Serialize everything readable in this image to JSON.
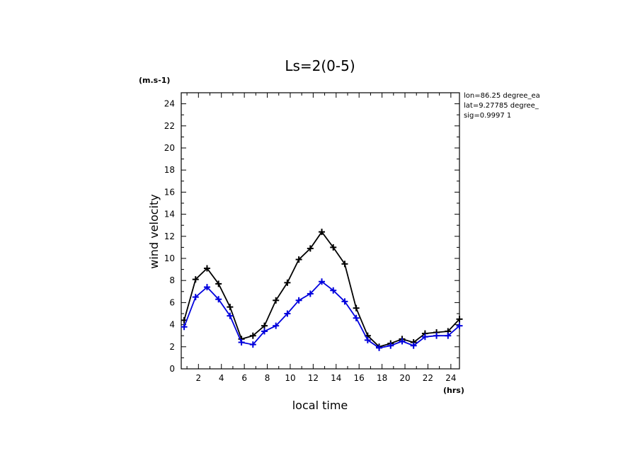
{
  "chart_data": {
    "type": "line",
    "title": "Ls=2(0-5)",
    "xlabel": "local time",
    "ylabel": "wind velocity",
    "yunit": "(m.s-1)",
    "xunit": "(hrs)",
    "xlim": [
      0.5,
      24.75
    ],
    "ylim": [
      0,
      25
    ],
    "xticks": [
      2,
      4,
      6,
      8,
      10,
      12,
      14,
      16,
      18,
      20,
      22,
      24
    ],
    "yticks": [
      0,
      2,
      4,
      6,
      8,
      10,
      12,
      14,
      16,
      18,
      20,
      22,
      24
    ],
    "grid": false,
    "annotations": [
      "lon=86.25 degree_ea",
      "lat=9.27785 degree_",
      "sig=0.9997 1"
    ],
    "series": [
      {
        "color": "#000000",
        "marker": "plus",
        "x": [
          0.75,
          1.75,
          2.75,
          3.75,
          4.75,
          5.75,
          6.75,
          7.75,
          8.75,
          9.75,
          10.75,
          11.75,
          12.75,
          13.75,
          14.75,
          15.75,
          16.75,
          17.75,
          18.75,
          19.75,
          20.75,
          21.75,
          22.75,
          23.75,
          24.75
        ],
        "values": [
          4.4,
          8.1,
          9.1,
          7.7,
          5.6,
          2.7,
          3.0,
          3.9,
          6.2,
          7.8,
          9.9,
          10.9,
          12.4,
          11.0,
          9.5,
          5.5,
          3.0,
          2.0,
          2.3,
          2.7,
          2.4,
          3.2,
          3.3,
          3.4,
          4.5
        ]
      },
      {
        "color": "#0000dd",
        "marker": "plus",
        "x": [
          0.75,
          1.75,
          2.75,
          3.75,
          4.75,
          5.75,
          6.75,
          7.75,
          8.75,
          9.75,
          10.75,
          11.75,
          12.75,
          13.75,
          14.75,
          15.75,
          16.75,
          17.75,
          18.75,
          19.75,
          20.75,
          21.75,
          22.75,
          23.75,
          24.75
        ],
        "values": [
          3.8,
          6.5,
          7.4,
          6.3,
          4.8,
          2.4,
          2.2,
          3.4,
          3.9,
          5.0,
          6.2,
          6.8,
          7.9,
          7.1,
          6.1,
          4.6,
          2.6,
          1.9,
          2.1,
          2.5,
          2.1,
          2.9,
          3.0,
          3.0,
          3.9
        ]
      }
    ]
  }
}
